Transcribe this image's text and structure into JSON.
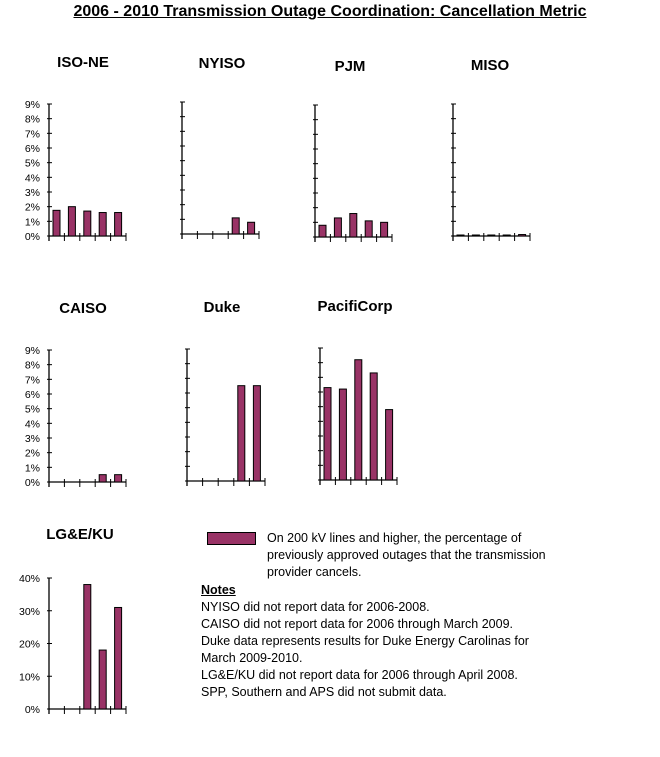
{
  "title": "2006 - 2010 Transmission Outage Coordination: Cancellation Metric",
  "colors": {
    "bar": "#993366",
    "axis": "#000000"
  },
  "legend": {
    "label": "On 200 kV lines and higher, the percentage of previously approved outages that the transmission provider cancels."
  },
  "notes": {
    "heading": "Notes",
    "items": [
      "NYISO did not report data for 2006-2008.",
      "CAISO did not report data for 2006 through March 2009.",
      "Duke data represents results for Duke Energy Carolinas for March 2009-2010.",
      "LG&E/KU did not report data for 2006 through April 2008.",
      "SPP, Southern and APS did not submit data."
    ]
  },
  "chart_data": [
    {
      "type": "bar",
      "title": "ISO-NE",
      "values": [
        1.75,
        2.0,
        1.7,
        1.6,
        1.6
      ],
      "ylim": [
        0,
        9
      ],
      "yticks": [
        "0%",
        "1%",
        "2%",
        "3%",
        "4%",
        "5%",
        "6%",
        "7%",
        "8%",
        "9%"
      ],
      "show_tick_labels": true
    },
    {
      "type": "bar",
      "title": "NYISO",
      "values": [
        null,
        null,
        null,
        1.1,
        0.8
      ],
      "ylim": [
        0,
        9
      ],
      "show_tick_labels": false
    },
    {
      "type": "bar",
      "title": "PJM",
      "values": [
        0.8,
        1.3,
        1.6,
        1.1,
        1.0
      ],
      "ylim": [
        0,
        9
      ],
      "show_tick_labels": false
    },
    {
      "type": "bar",
      "title": "MISO",
      "values": [
        0,
        0.05,
        0.05,
        0.05,
        0.1
      ],
      "ylim": [
        0,
        9
      ],
      "show_tick_labels": false
    },
    {
      "type": "bar",
      "title": "CAISO",
      "values": [
        null,
        null,
        null,
        0.5,
        0.5
      ],
      "ylim": [
        0,
        9
      ],
      "yticks": [
        "0%",
        "1%",
        "2%",
        "3%",
        "4%",
        "5%",
        "6%",
        "7%",
        "8%",
        "9%"
      ],
      "show_tick_labels": true
    },
    {
      "type": "bar",
      "title": "Duke",
      "values": [
        null,
        null,
        null,
        6.5,
        6.5
      ],
      "ylim": [
        0,
        9
      ],
      "show_tick_labels": false
    },
    {
      "type": "bar",
      "title": "PacifiCorp",
      "values": [
        6.3,
        6.2,
        8.2,
        7.3,
        4.8
      ],
      "ylim": [
        0,
        9
      ],
      "show_tick_labels": false
    },
    {
      "type": "bar",
      "title": "LG&E/KU",
      "values": [
        null,
        null,
        38,
        18,
        31
      ],
      "ylim": [
        0,
        40
      ],
      "yticks": [
        "0%",
        "10%",
        "20%",
        "30%",
        "40%"
      ],
      "show_tick_labels": true
    }
  ]
}
